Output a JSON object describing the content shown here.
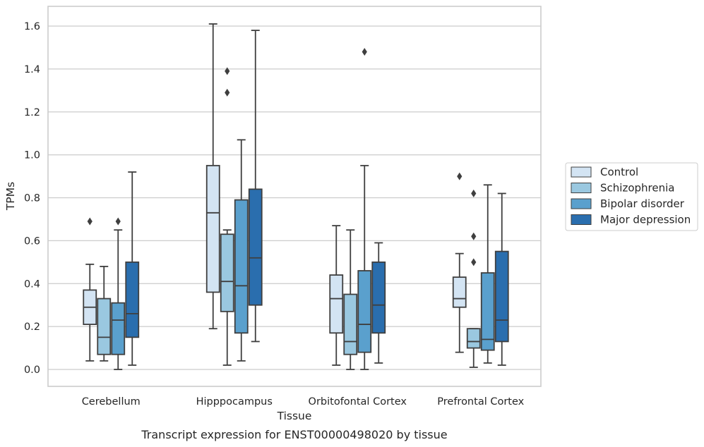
{
  "chart_data": {
    "type": "box",
    "xlabel": "Tissue",
    "ylabel": "TPMs",
    "caption": "Transcript expression for ENST00000498020 by tissue",
    "ylim": [
      -0.08,
      1.69
    ],
    "yticks": [
      "0.0",
      "0.2",
      "0.4",
      "0.6",
      "0.8",
      "1.0",
      "1.2",
      "1.4",
      "1.6"
    ],
    "grid": "horizontal",
    "legend_position": "right",
    "categories": [
      "Cerebellum",
      "Hipppocampus",
      "Orbitofontal Cortex",
      "Prefrontal Cortex"
    ],
    "series": [
      {
        "name": "Control",
        "color": "#d3e4f3",
        "boxes": [
          {
            "whislo": 0.04,
            "q1": 0.21,
            "med": 0.29,
            "q3": 0.37,
            "whishi": 0.49,
            "fliers": [
              0.69
            ]
          },
          {
            "whislo": 0.19,
            "q1": 0.36,
            "med": 0.73,
            "q3": 0.95,
            "whishi": 1.61,
            "fliers": []
          },
          {
            "whislo": 0.02,
            "q1": 0.17,
            "med": 0.33,
            "q3": 0.44,
            "whishi": 0.67,
            "fliers": []
          },
          {
            "whislo": 0.08,
            "q1": 0.29,
            "med": 0.33,
            "q3": 0.43,
            "whishi": 0.54,
            "fliers": [
              0.9
            ]
          }
        ]
      },
      {
        "name": "Schizophrenia",
        "color": "#9ac8e0",
        "boxes": [
          {
            "whislo": 0.04,
            "q1": 0.07,
            "med": 0.15,
            "q3": 0.33,
            "whishi": 0.48,
            "fliers": []
          },
          {
            "whislo": 0.02,
            "q1": 0.27,
            "med": 0.41,
            "q3": 0.63,
            "whishi": 0.65,
            "fliers": [
              1.29,
              1.39
            ]
          },
          {
            "whislo": 0.0,
            "q1": 0.07,
            "med": 0.13,
            "q3": 0.35,
            "whishi": 0.65,
            "fliers": []
          },
          {
            "whislo": 0.01,
            "q1": 0.1,
            "med": 0.13,
            "q3": 0.19,
            "whishi": 0.19,
            "fliers": [
              0.5,
              0.62,
              0.82
            ]
          }
        ]
      },
      {
        "name": "Bipolar disorder",
        "color": "#5aa0cd",
        "boxes": [
          {
            "whislo": 0.0,
            "q1": 0.07,
            "med": 0.23,
            "q3": 0.31,
            "whishi": 0.65,
            "fliers": [
              0.69
            ]
          },
          {
            "whislo": 0.04,
            "q1": 0.17,
            "med": 0.39,
            "q3": 0.79,
            "whishi": 1.07,
            "fliers": []
          },
          {
            "whislo": 0.0,
            "q1": 0.08,
            "med": 0.21,
            "q3": 0.46,
            "whishi": 0.95,
            "fliers": [
              1.48
            ]
          },
          {
            "whislo": 0.03,
            "q1": 0.09,
            "med": 0.14,
            "q3": 0.45,
            "whishi": 0.86,
            "fliers": []
          }
        ]
      },
      {
        "name": "Major depression",
        "color": "#2a6eae",
        "boxes": [
          {
            "whislo": 0.02,
            "q1": 0.15,
            "med": 0.26,
            "q3": 0.5,
            "whishi": 0.92,
            "fliers": []
          },
          {
            "whislo": 0.13,
            "q1": 0.3,
            "med": 0.52,
            "q3": 0.84,
            "whishi": 1.58,
            "fliers": []
          },
          {
            "whislo": 0.03,
            "q1": 0.17,
            "med": 0.3,
            "q3": 0.5,
            "whishi": 0.59,
            "fliers": []
          },
          {
            "whislo": 0.02,
            "q1": 0.13,
            "med": 0.23,
            "q3": 0.55,
            "whishi": 0.82,
            "fliers": []
          }
        ]
      }
    ]
  }
}
